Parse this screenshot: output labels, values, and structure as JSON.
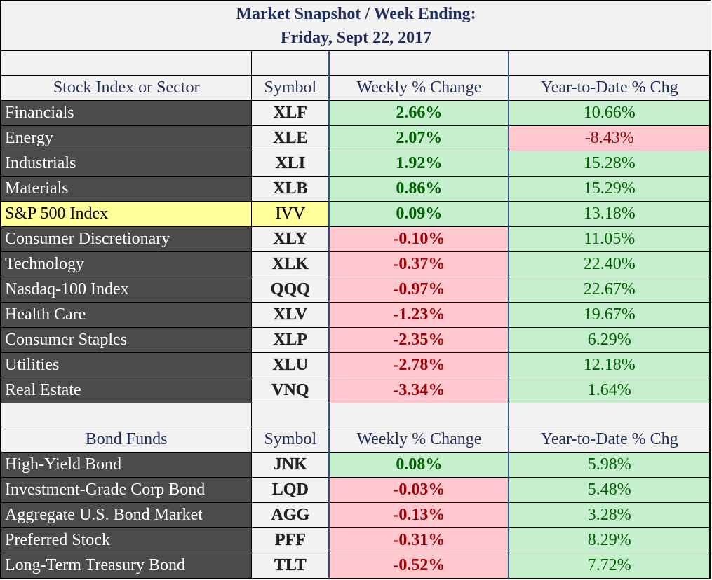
{
  "title": {
    "line1": "Market Snapshot / Week Ending:",
    "line2": "Friday, Sept 22, 2017"
  },
  "stocks": {
    "headers": [
      "Stock Index or Sector",
      "Symbol",
      "Weekly % Change",
      "Year-to-Date % Chg"
    ],
    "rows": [
      {
        "name": "Financials",
        "symbol": "XLF",
        "weekly": "2.66%",
        "ytd": "10.66%"
      },
      {
        "name": "Energy",
        "symbol": "XLE",
        "weekly": "2.07%",
        "ytd": "-8.43%"
      },
      {
        "name": "Industrials",
        "symbol": "XLI",
        "weekly": "1.92%",
        "ytd": "15.28%"
      },
      {
        "name": "Materials",
        "symbol": "XLB",
        "weekly": "0.86%",
        "ytd": "15.29%"
      },
      {
        "name": "S&P 500 Index",
        "symbol": "IVV",
        "weekly": "0.09%",
        "ytd": "13.18%"
      },
      {
        "name": "Consumer Discretionary",
        "symbol": "XLY",
        "weekly": "-0.10%",
        "ytd": "11.05%"
      },
      {
        "name": "Technology",
        "symbol": "XLK",
        "weekly": "-0.37%",
        "ytd": "22.40%"
      },
      {
        "name": "Nasdaq-100 Index",
        "symbol": "QQQ",
        "weekly": "-0.97%",
        "ytd": "22.67%"
      },
      {
        "name": "Health Care",
        "symbol": "XLV",
        "weekly": "-1.23%",
        "ytd": "19.67%"
      },
      {
        "name": "Consumer Staples",
        "symbol": "XLP",
        "weekly": "-2.35%",
        "ytd": "6.29%"
      },
      {
        "name": "Utilities",
        "symbol": "XLU",
        "weekly": "-2.78%",
        "ytd": "12.18%"
      },
      {
        "name": "Real Estate",
        "symbol": "VNQ",
        "weekly": "-3.34%",
        "ytd": "1.64%"
      }
    ]
  },
  "bonds": {
    "headers": [
      "Bond Funds",
      "Symbol",
      "Weekly % Change",
      "Year-to-Date % Chg"
    ],
    "rows": [
      {
        "name": "High-Yield Bond",
        "symbol": "JNK",
        "weekly": "0.08%",
        "ytd": "5.98%"
      },
      {
        "name": "Investment-Grade Corp Bond",
        "symbol": "LQD",
        "weekly": "-0.03%",
        "ytd": "5.48%"
      },
      {
        "name": "Aggregate U.S. Bond Market",
        "symbol": "AGG",
        "weekly": "-0.13%",
        "ytd": "3.28%"
      },
      {
        "name": "Preferred Stock",
        "symbol": "PFF",
        "weekly": "-0.31%",
        "ytd": "8.29%"
      },
      {
        "name": "Long-Term Treasury Bond",
        "symbol": "TLT",
        "weekly": "-0.52%",
        "ytd": "7.72%"
      }
    ]
  },
  "highlight_symbol": "IVV",
  "colors": {
    "title_text": "#1f2d5a",
    "name_cell_bg": "#4b4b4b",
    "highlight_bg": "#ffff99",
    "positive_bg": "#c6efce",
    "positive_text": "#006100",
    "negative_bg": "#ffc7ce",
    "negative_text": "#9c0006"
  }
}
